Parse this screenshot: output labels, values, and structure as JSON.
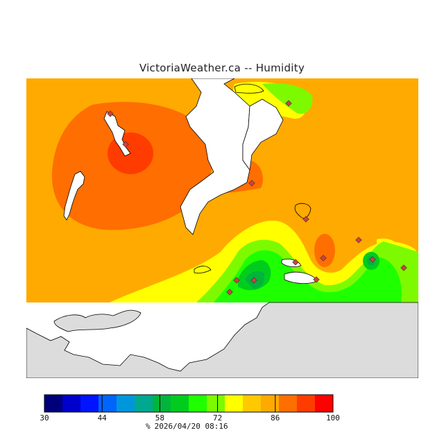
{
  "title": "VictoriaWeather.ca -- Humidity",
  "legend": {
    "unit": "%",
    "timestamp": "2026/04/20 08:16",
    "min": 30,
    "max": 100,
    "tick_labels": [
      "30",
      "44",
      "58",
      "72",
      "86",
      "100"
    ],
    "colors": [
      "#00007a",
      "#0000cc",
      "#0014ff",
      "#0064ff",
      "#0096dc",
      "#00a890",
      "#00b43c",
      "#00cc1e",
      "#1eff00",
      "#7dfa00",
      "#ffff00",
      "#ffc800",
      "#ffaa00",
      "#ff6e00",
      "#ff3c00",
      "#ff0000"
    ]
  },
  "colors": {
    "land_base": "#ffaa00",
    "no_data": "#dcdcdc",
    "water": "#ffffff",
    "coast": "#000000"
  }
}
